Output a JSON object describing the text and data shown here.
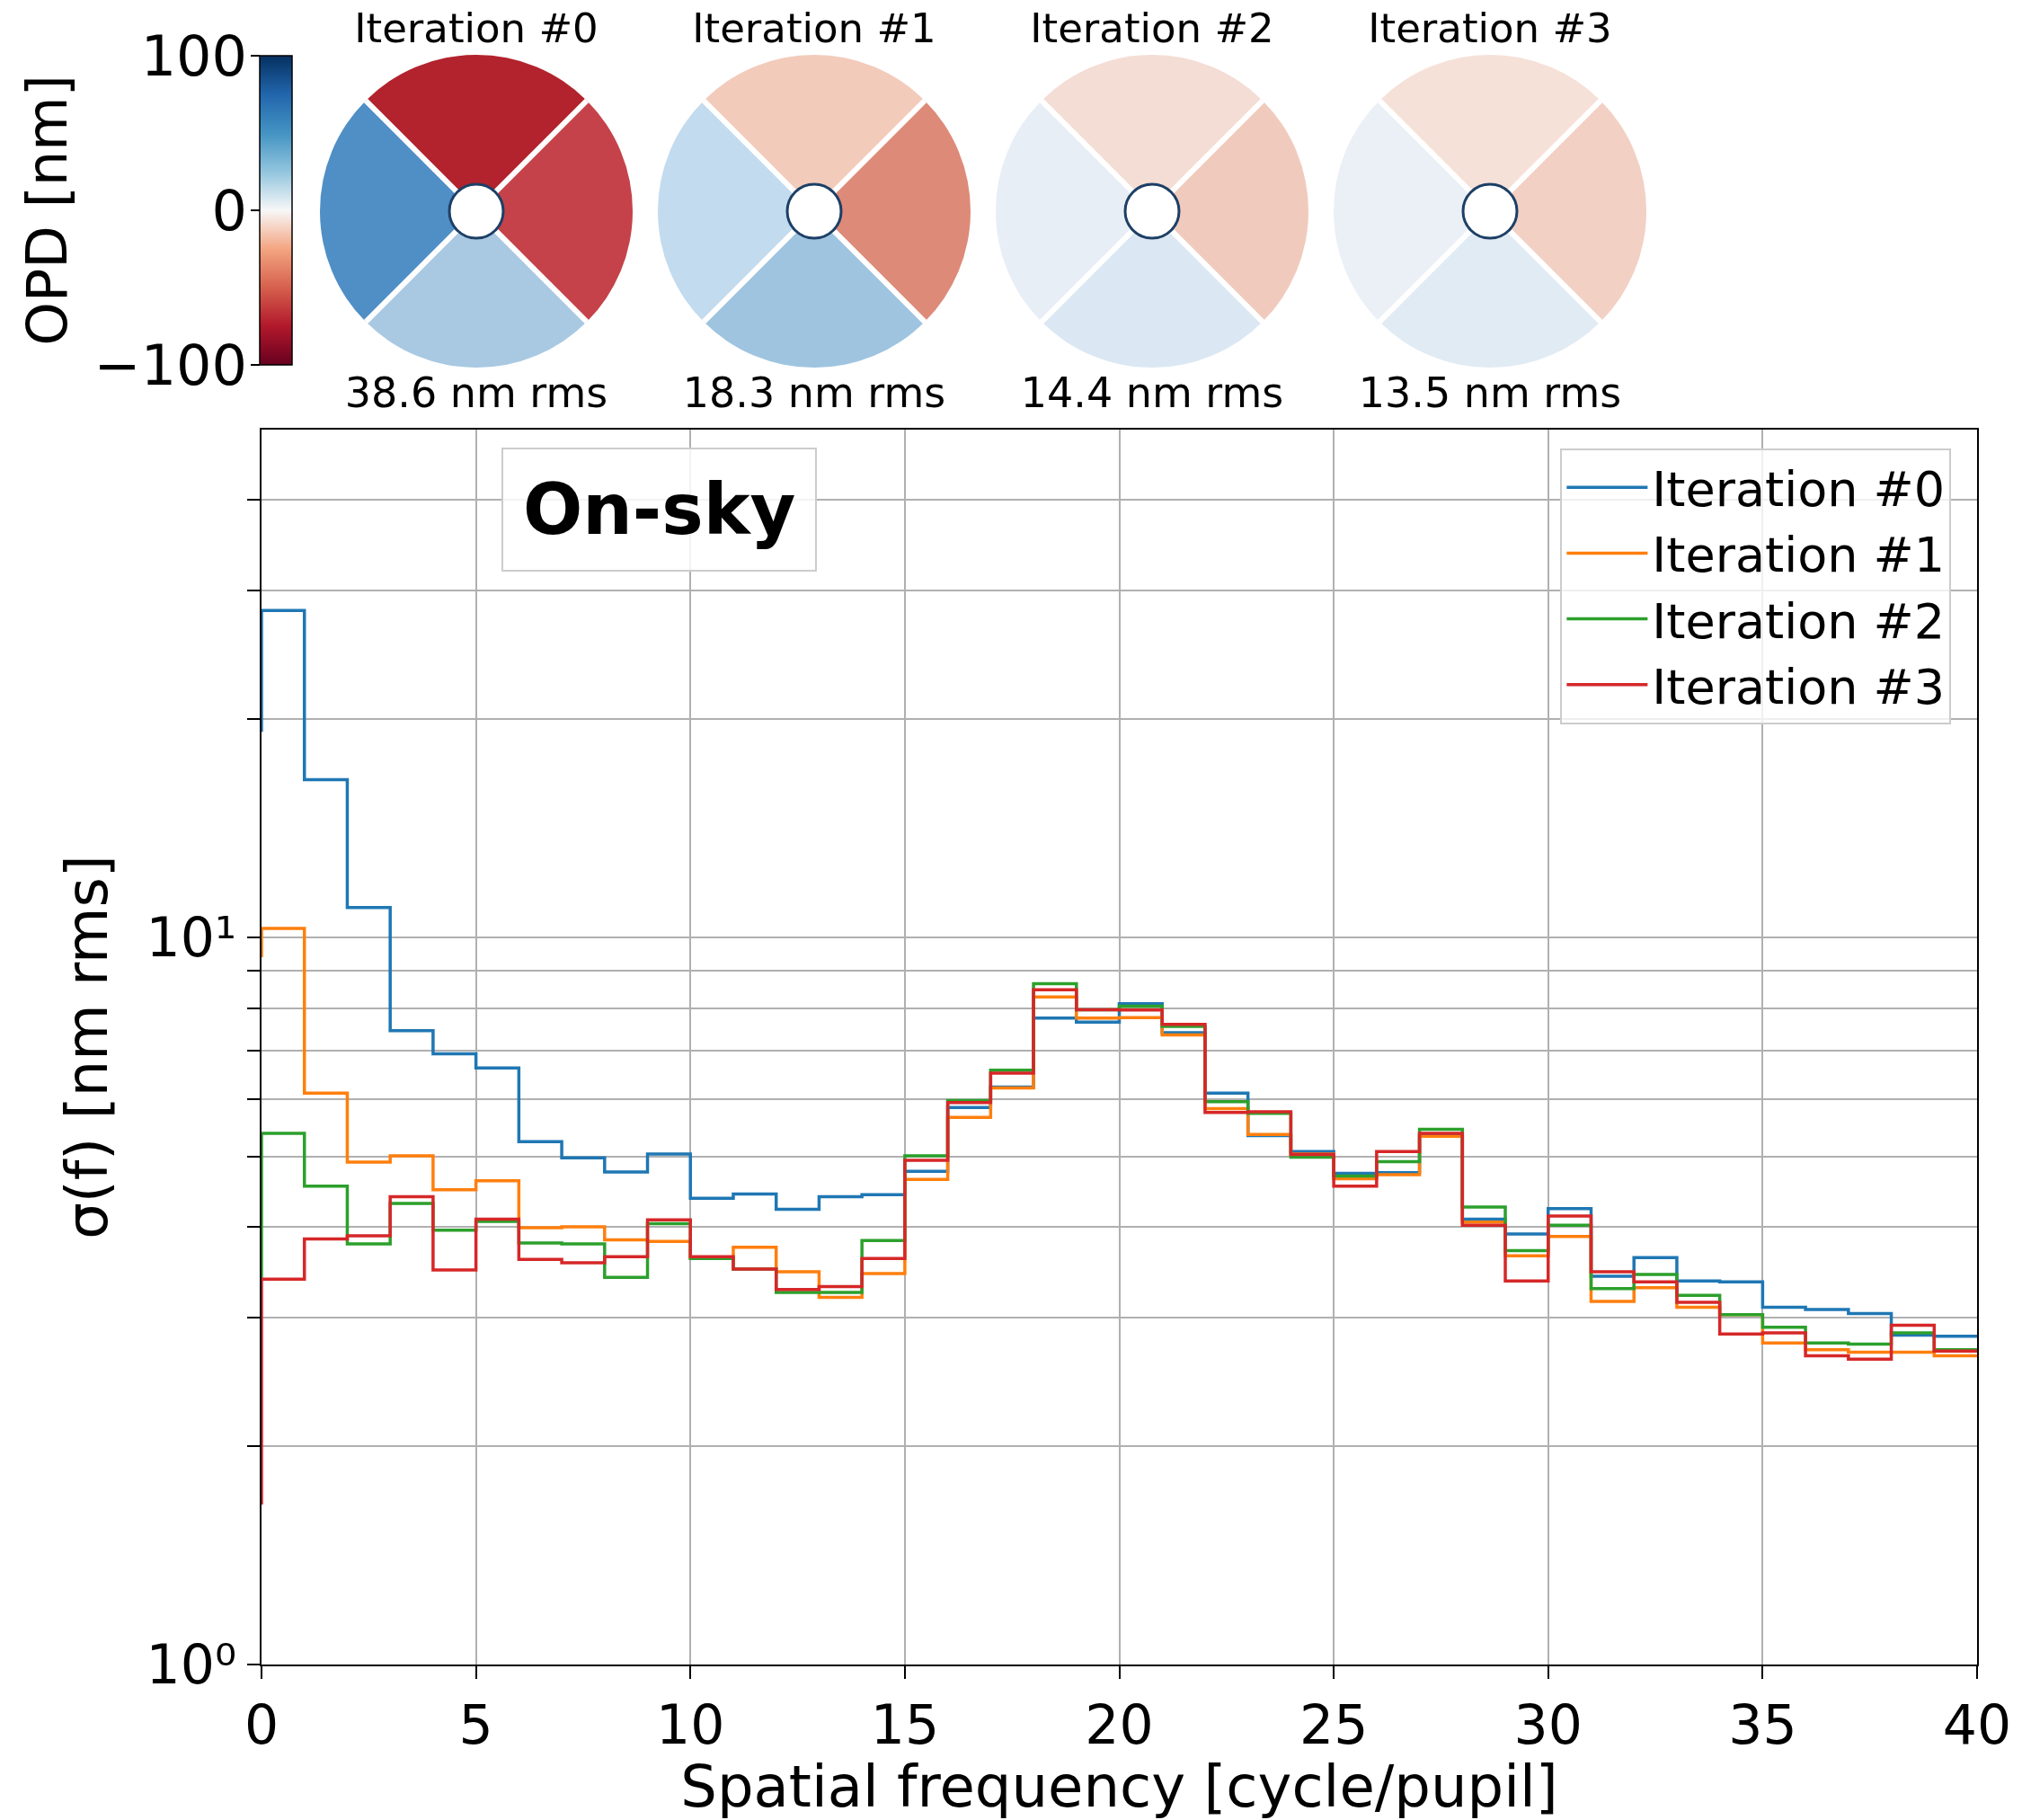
{
  "chart_data": [
    {
      "type": "other",
      "clabel": "OPD [nm]",
      "annotations": [
        "100",
        "0",
        "−100"
      ]
    },
    {
      "type": "other",
      "annotations": [
        "Iteration #0",
        "38.6 nm rms",
        "Iteration #1",
        "18.3 nm rms",
        "Iteration #2",
        "14.4 nm rms",
        "Iteration #3",
        "13.5 nm rms"
      ]
    },
    {
      "type": "step",
      "xlabel": "Spatial frequency [cycle/pupil]",
      "ylabel": "σ(f) [nm rms]",
      "annotations": [
        "On-sky"
      ],
      "x": [
        0,
        1,
        2,
        3,
        4,
        5,
        6,
        7,
        8,
        9,
        10,
        11,
        12,
        13,
        14,
        15,
        16,
        17,
        18,
        19,
        20,
        21,
        22,
        23,
        24,
        25,
        26,
        27,
        28,
        29,
        30,
        31,
        32,
        33,
        34,
        35,
        36,
        37,
        38,
        39,
        40
      ],
      "series": [
        {
          "name": "Iteration #0",
          "color": "#1f77b4",
          "values": [
            19.2,
            28.2,
            16.5,
            11.0,
            7.45,
            6.92,
            6.62,
            5.24,
            4.98,
            4.76,
            5.04,
            4.38,
            4.44,
            4.23,
            4.4,
            4.43,
            4.77,
            5.84,
            6.23,
            7.75,
            7.65,
            8.11,
            7.4,
            6.11,
            5.34,
            5.08,
            4.74,
            4.75,
            5.35,
            4.1,
            3.91,
            4.24,
            3.42,
            3.63,
            3.37,
            3.36,
            3.1,
            3.08,
            3.04,
            2.84,
            2.83
          ]
        },
        {
          "name": "Iteration #1",
          "color": "#ff7f0e",
          "values": [
            9.4,
            10.3,
            6.11,
            4.91,
            5.01,
            4.5,
            4.63,
            3.99,
            4.0,
            3.84,
            3.82,
            3.62,
            3.75,
            3.47,
            3.2,
            3.45,
            4.65,
            5.66,
            6.21,
            8.29,
            7.75,
            7.76,
            7.35,
            5.82,
            5.36,
            5.04,
            4.66,
            4.72,
            5.33,
            4.06,
            3.65,
            3.88,
            3.16,
            3.3,
            3.1,
            3.03,
            2.77,
            2.71,
            2.69,
            2.69,
            2.66
          ]
        },
        {
          "name": "Iteration #2",
          "color": "#2ca02c",
          "values": [
            3.4,
            5.38,
            4.55,
            3.79,
            4.31,
            3.96,
            4.07,
            3.8,
            3.79,
            3.41,
            4.04,
            3.62,
            3.5,
            3.25,
            3.25,
            3.83,
            5.01,
            5.97,
            6.57,
            8.64,
            7.96,
            8.05,
            7.55,
            5.95,
            5.73,
            4.99,
            4.7,
            4.92,
            5.45,
            4.26,
            3.71,
            4.02,
            3.29,
            3.44,
            3.22,
            3.03,
            2.91,
            2.77,
            2.76,
            2.86,
            2.71
          ]
        },
        {
          "name": "Iteration #3",
          "color": "#d62728",
          "values": [
            1.66,
            3.39,
            3.85,
            3.89,
            4.4,
            3.49,
            4.1,
            3.61,
            3.57,
            3.64,
            4.09,
            3.64,
            3.5,
            3.28,
            3.31,
            3.62,
            4.94,
            5.93,
            6.51,
            8.48,
            7.96,
            7.95,
            7.6,
            5.75,
            5.76,
            5.03,
            4.55,
            5.08,
            5.38,
            4.02,
            3.37,
            4.14,
            3.47,
            3.36,
            3.15,
            2.85,
            2.86,
            2.66,
            2.63,
            2.93,
            2.7
          ]
        }
      ],
      "xlim": [
        0,
        40
      ],
      "xticks": [
        0,
        5,
        10,
        15,
        20,
        25,
        30,
        35,
        40
      ],
      "ylim": [
        1,
        50
      ],
      "yticks": [
        {
          "value": 1,
          "label": "10⁰"
        },
        {
          "value": 2,
          "label": null
        },
        {
          "value": 3,
          "label": null
        },
        {
          "value": 4,
          "label": null
        },
        {
          "value": 5,
          "label": null
        },
        {
          "value": 6,
          "label": null
        },
        {
          "value": 7,
          "label": null
        },
        {
          "value": 8,
          "label": null
        },
        {
          "value": 9,
          "label": null
        },
        {
          "value": 10,
          "label": "10¹"
        },
        {
          "value": 20,
          "label": null
        },
        {
          "value": 30,
          "label": null
        },
        {
          "value": 40,
          "label": null
        }
      ],
      "log": "y",
      "grid": true,
      "legend": "top right"
    }
  ]
}
